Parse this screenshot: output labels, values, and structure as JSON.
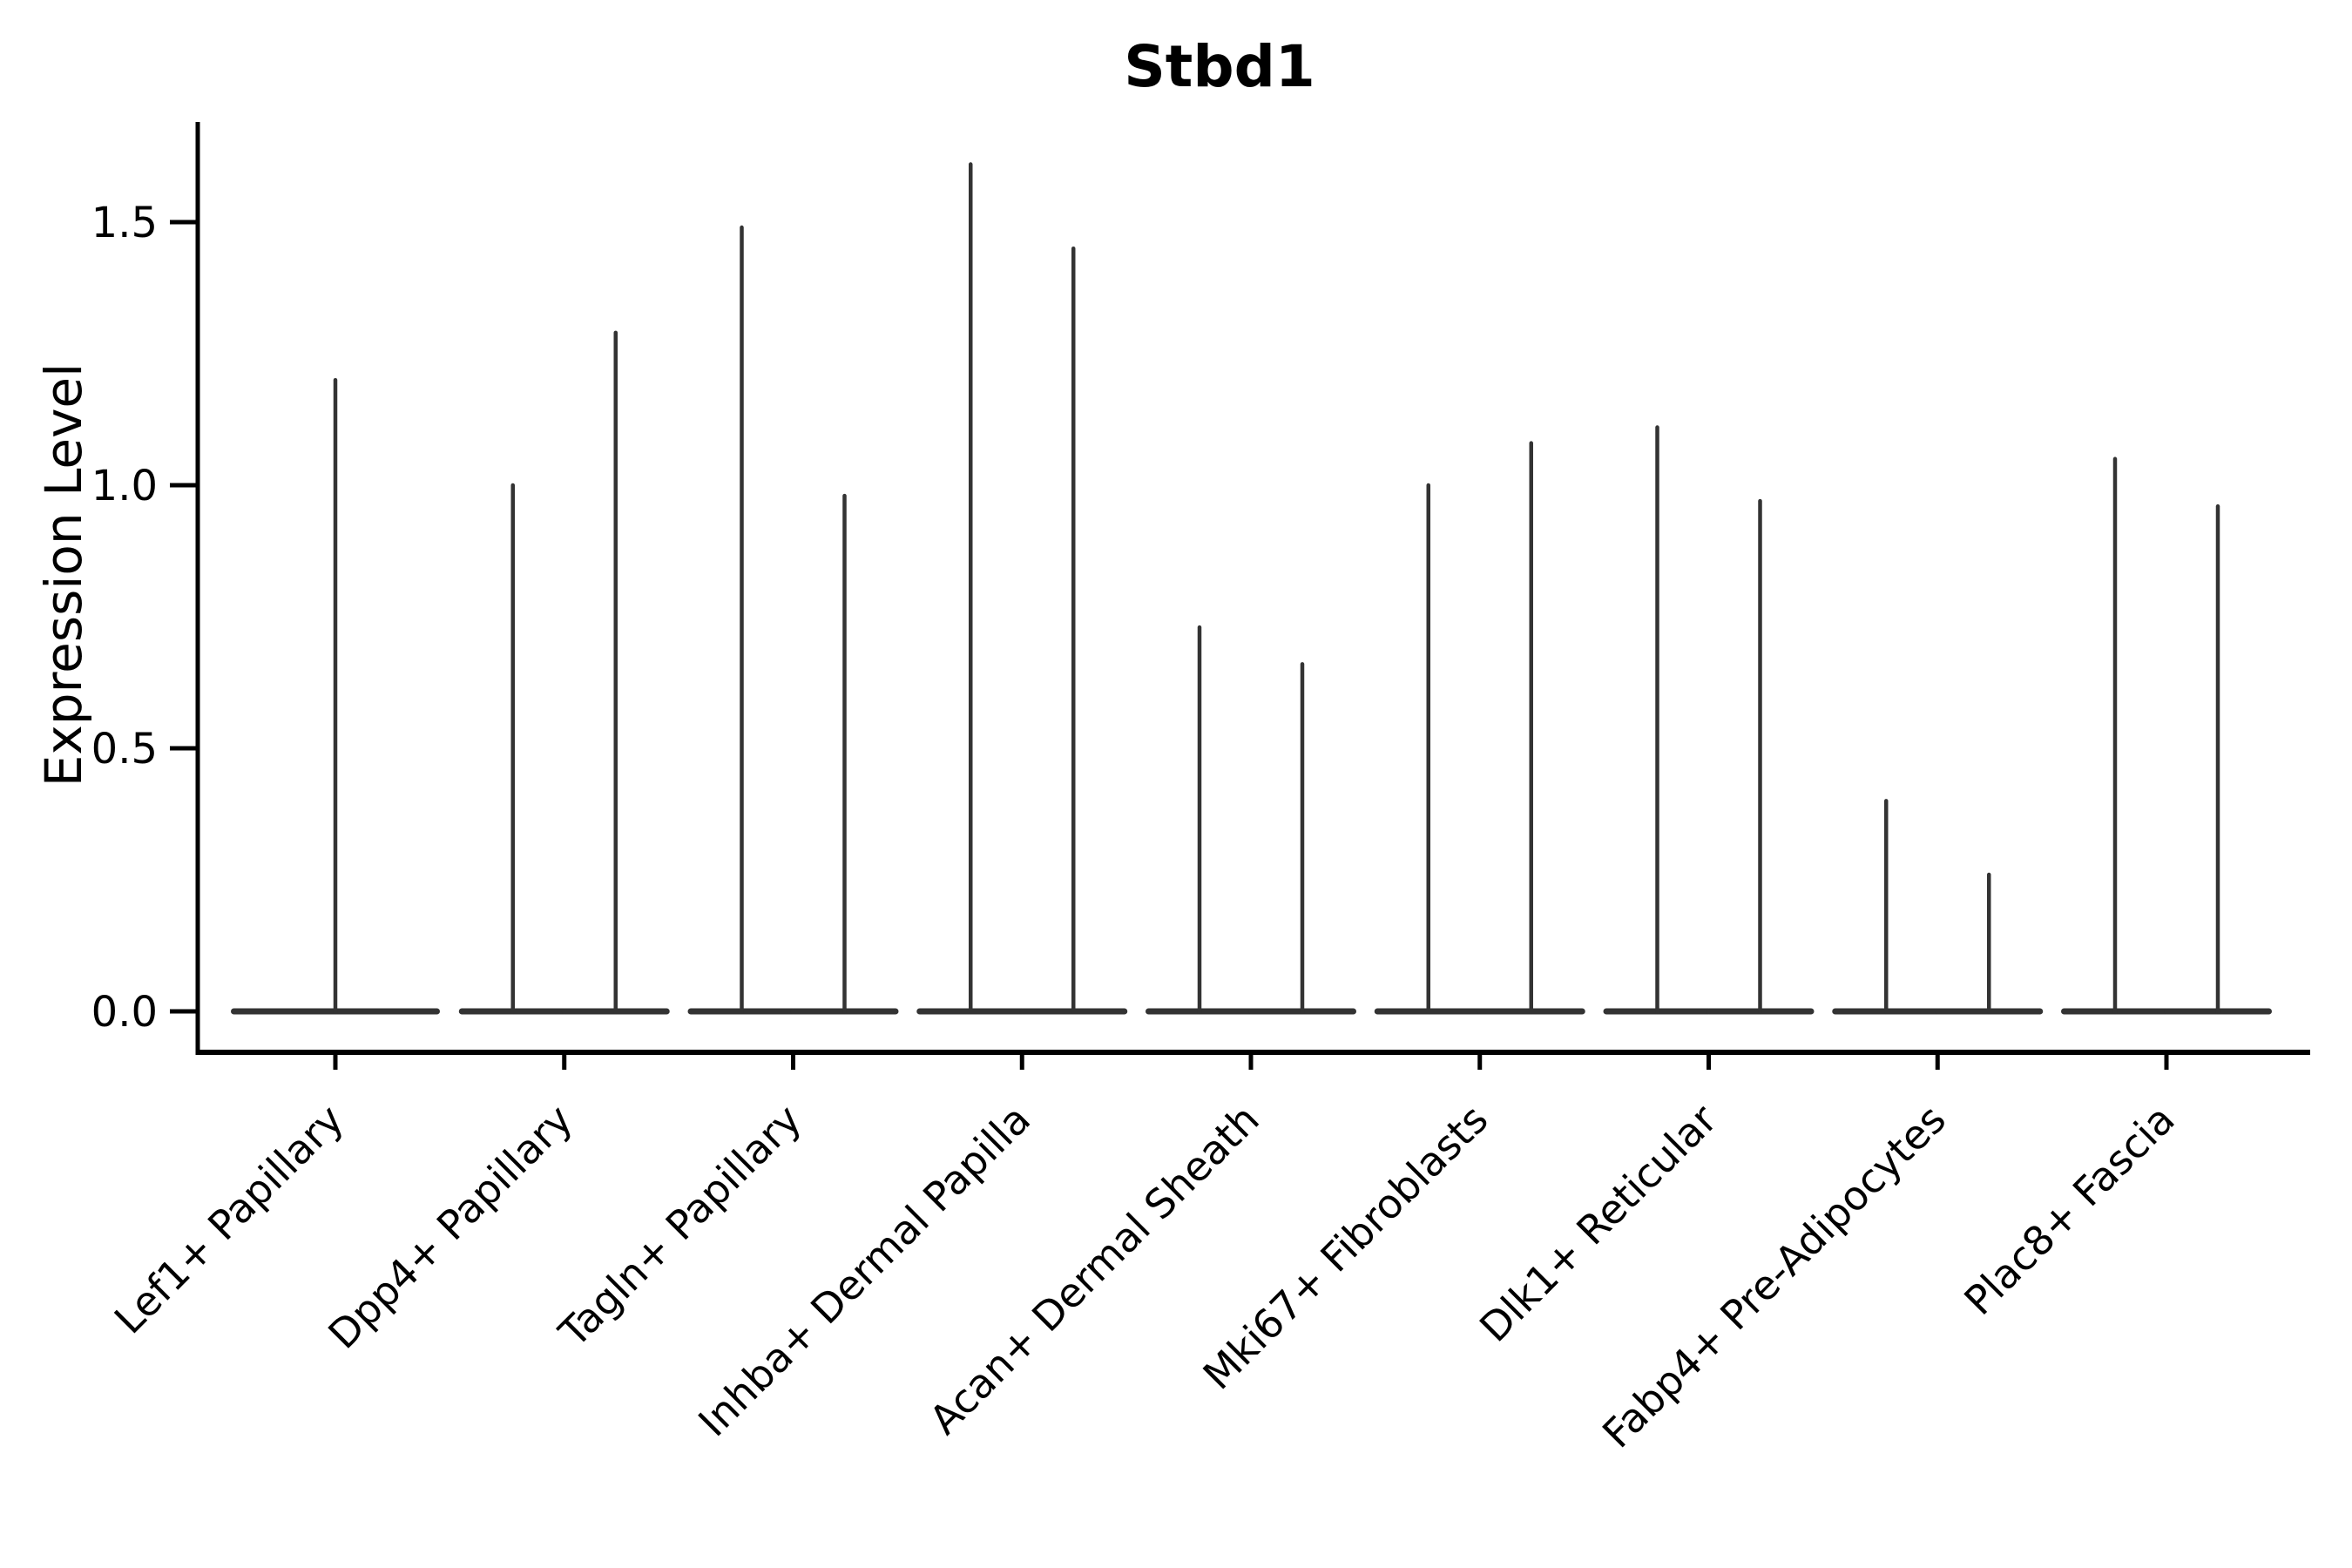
{
  "figure": {
    "title": "Stbd1",
    "y_axis_label": "Expression Level"
  },
  "chart_data": {
    "type": "violin",
    "title": "Stbd1",
    "xlabel": "",
    "ylabel": "Expression Level",
    "ylim": [
      -0.08,
      1.69
    ],
    "grid": false,
    "legend": "none",
    "background": "#ffffff",
    "colors": {
      "violin": "#333333",
      "axis": "#000000"
    },
    "yticks": [
      {
        "label": "0.0",
        "value": 0.0
      },
      {
        "label": "0.5",
        "value": 0.5
      },
      {
        "label": "1.0",
        "value": 1.0
      },
      {
        "label": "1.5",
        "value": 1.5
      }
    ],
    "categories": [
      "Lef1+ Papillary",
      "Dpp4+ Papillary",
      "Tagln+ Papillary",
      "Inhba+ Dermal Papilla",
      "Acan+ Dermal Sheath",
      "Mki67+ Fibroblasts",
      "Dlk1+ Reticular",
      "Fabp4+ Pre-Adipocytes",
      "Plac8+ Fascia"
    ],
    "violins_per_category": [
      1,
      2,
      2,
      2,
      2,
      2,
      2,
      2,
      2
    ],
    "violin_max_values": [
      [
        1.2
      ],
      [
        1.0,
        1.29
      ],
      [
        1.49,
        0.98
      ],
      [
        1.61,
        1.45
      ],
      [
        0.73,
        0.66
      ],
      [
        1.0,
        1.08
      ],
      [
        1.11,
        0.97
      ],
      [
        0.4,
        0.26
      ],
      [
        1.05,
        0.96
      ]
    ],
    "density_concentrated_at_zero": true,
    "violin_shape_note": "Each violin collapses to a flat bar at expression 0 with a thin spike rising to its maximum expression value"
  }
}
